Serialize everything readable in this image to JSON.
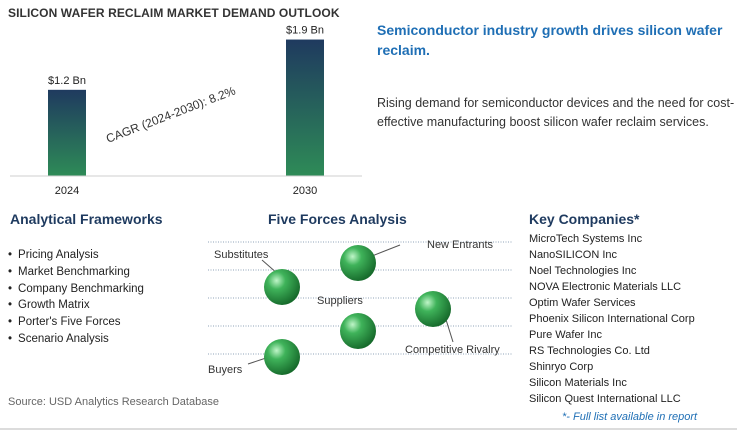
{
  "chart_data": {
    "type": "bar",
    "title": "SILICON WAFER RECLAIM MARKET DEMAND OUTLOOK",
    "categories": [
      "2024",
      "2030"
    ],
    "values": [
      1.2,
      1.9
    ],
    "value_labels": [
      "$1.2 Bn",
      "$1.9 Bn"
    ],
    "annotation": "CAGR (2024-2030):  8.2%",
    "ylim": [
      0,
      2.2
    ]
  },
  "headline": "Semiconductor industry growth drives silicon wafer reclaim.",
  "body": "Rising demand for semiconductor devices and the need for cost-effective manufacturing boost silicon wafer reclaim services.",
  "frameworks": {
    "title": "Analytical Frameworks",
    "items": [
      "Pricing Analysis",
      "Market Benchmarking",
      "Company Benchmarking",
      "Growth Matrix",
      "Porter's Five Forces",
      "Scenario Analysis"
    ]
  },
  "five_forces": {
    "title": "Five Forces Analysis",
    "labels": [
      "Substitutes",
      "New Entrants",
      "Suppliers",
      "Competitive Rivalry",
      "Buyers"
    ]
  },
  "companies": {
    "title": "Key Companies*",
    "items": [
      "MicroTech Systems Inc",
      "NanoSILICON Inc",
      "Noel Technologies Inc",
      "NOVA Electronic Materials LLC",
      "Optim Wafer Services",
      "Phoenix Silicon International Corp",
      "Pure Wafer Inc",
      "RS Technologies Co. Ltd",
      "Shinryo Corp",
      "Silicon Materials Inc",
      "Silicon Quest International LLC"
    ],
    "footnote": "*- Full list available in report"
  },
  "source": "Source: USD Analytics Research Database",
  "colors": {
    "bar_top": "#1f3a5f",
    "bar_bottom": "#2e8b57",
    "accent": "#1f6fb5",
    "sphere": "#2e9d4e"
  }
}
